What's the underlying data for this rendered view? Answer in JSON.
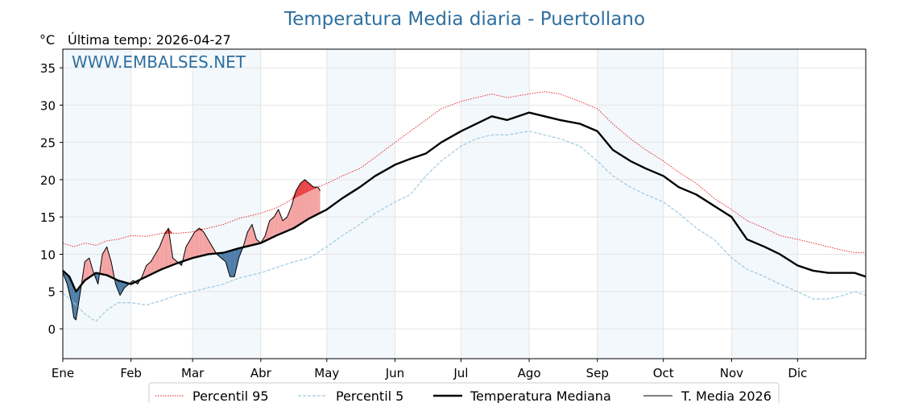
{
  "chart_data": {
    "type": "line",
    "title": "Temperatura Media diaria - Puertollano",
    "unit_label": "°C",
    "subtitle": "Última temp: 2026-04-27",
    "watermark": "WWW.EMBALSES.NET",
    "ylim": [
      -4,
      37.5
    ],
    "xlim": [
      0,
      365
    ],
    "grid": true,
    "legend_placement": "bottom-center",
    "y_ticks": [
      0,
      5,
      10,
      15,
      20,
      25,
      30,
      35
    ],
    "month_labels": [
      "Ene",
      "Feb",
      "Mar",
      "Abr",
      "May",
      "Jun",
      "Jul",
      "Ago",
      "Sep",
      "Oct",
      "Nov",
      "Dic"
    ],
    "month_starts": [
      0,
      31,
      59,
      90,
      120,
      151,
      181,
      212,
      243,
      273,
      304,
      334
    ],
    "colors": {
      "p95": "#e41a1c",
      "p5": "#9ecae1",
      "median": "#000000",
      "current": "#000000",
      "above": "#f4a3a3",
      "above_strong": "#e8474a",
      "below": "#4f7ea8",
      "band": "#f3f8fc",
      "title": "#2f6f9f"
    },
    "series": [
      {
        "name": "Percentil 95",
        "style": "dotted-red",
        "points": [
          [
            0,
            11.5
          ],
          [
            5,
            11
          ],
          [
            10,
            11.5
          ],
          [
            15,
            11.2
          ],
          [
            20,
            11.8
          ],
          [
            25,
            12
          ],
          [
            31,
            12.5
          ],
          [
            38,
            12.4
          ],
          [
            45,
            12.8
          ],
          [
            52,
            12.8
          ],
          [
            59,
            13
          ],
          [
            66,
            13.5
          ],
          [
            73,
            14
          ],
          [
            80,
            14.8
          ],
          [
            90,
            15.5
          ],
          [
            97,
            16.2
          ],
          [
            105,
            17.5
          ],
          [
            112,
            18.5
          ],
          [
            120,
            19.5
          ],
          [
            127,
            20.5
          ],
          [
            135,
            21.5
          ],
          [
            142,
            23
          ],
          [
            151,
            25
          ],
          [
            158,
            26.5
          ],
          [
            165,
            28
          ],
          [
            172,
            29.5
          ],
          [
            181,
            30.5
          ],
          [
            188,
            31
          ],
          [
            195,
            31.5
          ],
          [
            202,
            31
          ],
          [
            212,
            31.5
          ],
          [
            219,
            31.8
          ],
          [
            226,
            31.5
          ],
          [
            235,
            30.5
          ],
          [
            243,
            29.5
          ],
          [
            250,
            27.5
          ],
          [
            258,
            25.5
          ],
          [
            265,
            24
          ],
          [
            273,
            22.5
          ],
          [
            280,
            21
          ],
          [
            288,
            19.5
          ],
          [
            296,
            17.5
          ],
          [
            304,
            16
          ],
          [
            311,
            14.5
          ],
          [
            319,
            13.5
          ],
          [
            326,
            12.5
          ],
          [
            334,
            12
          ],
          [
            341,
            11.5
          ],
          [
            348,
            11
          ],
          [
            355,
            10.5
          ],
          [
            360,
            10.2
          ],
          [
            365,
            10.2
          ]
        ]
      },
      {
        "name": "Percentil 5",
        "style": "dashed-blue",
        "points": [
          [
            0,
            4.8
          ],
          [
            5,
            3.5
          ],
          [
            10,
            2
          ],
          [
            15,
            1
          ],
          [
            20,
            2.5
          ],
          [
            25,
            3.5
          ],
          [
            31,
            3.5
          ],
          [
            38,
            3.2
          ],
          [
            45,
            3.8
          ],
          [
            52,
            4.5
          ],
          [
            59,
            5
          ],
          [
            66,
            5.5
          ],
          [
            73,
            6
          ],
          [
            80,
            6.8
          ],
          [
            90,
            7.5
          ],
          [
            97,
            8.2
          ],
          [
            105,
            9
          ],
          [
            112,
            9.5
          ],
          [
            120,
            11
          ],
          [
            127,
            12.5
          ],
          [
            135,
            14
          ],
          [
            142,
            15.5
          ],
          [
            151,
            17
          ],
          [
            158,
            18
          ],
          [
            165,
            20.5
          ],
          [
            172,
            22.5
          ],
          [
            181,
            24.5
          ],
          [
            188,
            25.5
          ],
          [
            195,
            26
          ],
          [
            202,
            26
          ],
          [
            212,
            26.5
          ],
          [
            219,
            26
          ],
          [
            226,
            25.5
          ],
          [
            235,
            24.5
          ],
          [
            243,
            22.5
          ],
          [
            250,
            20.5
          ],
          [
            258,
            19
          ],
          [
            265,
            18
          ],
          [
            273,
            17
          ],
          [
            280,
            15.5
          ],
          [
            288,
            13.5
          ],
          [
            296,
            12
          ],
          [
            304,
            9.5
          ],
          [
            311,
            8
          ],
          [
            319,
            7
          ],
          [
            326,
            6
          ],
          [
            334,
            5
          ],
          [
            341,
            4
          ],
          [
            348,
            4
          ],
          [
            355,
            4.5
          ],
          [
            360,
            5
          ],
          [
            365,
            4.5
          ]
        ]
      },
      {
        "name": "Temperatura Mediana",
        "style": "thick-black",
        "points": [
          [
            0,
            7.8
          ],
          [
            3,
            7
          ],
          [
            6,
            5
          ],
          [
            10,
            6.5
          ],
          [
            15,
            7.5
          ],
          [
            20,
            7.2
          ],
          [
            25,
            6.5
          ],
          [
            31,
            6
          ],
          [
            38,
            7
          ],
          [
            45,
            8
          ],
          [
            52,
            8.8
          ],
          [
            59,
            9.5
          ],
          [
            66,
            10
          ],
          [
            73,
            10.2
          ],
          [
            80,
            10.8
          ],
          [
            90,
            11.5
          ],
          [
            97,
            12.5
          ],
          [
            105,
            13.5
          ],
          [
            112,
            14.8
          ],
          [
            120,
            16
          ],
          [
            127,
            17.5
          ],
          [
            135,
            19
          ],
          [
            142,
            20.5
          ],
          [
            151,
            22
          ],
          [
            158,
            22.8
          ],
          [
            165,
            23.5
          ],
          [
            172,
            25
          ],
          [
            181,
            26.5
          ],
          [
            188,
            27.5
          ],
          [
            195,
            28.5
          ],
          [
            202,
            28
          ],
          [
            212,
            29
          ],
          [
            219,
            28.5
          ],
          [
            226,
            28
          ],
          [
            235,
            27.5
          ],
          [
            243,
            26.5
          ],
          [
            250,
            24
          ],
          [
            258,
            22.5
          ],
          [
            265,
            21.5
          ],
          [
            273,
            20.5
          ],
          [
            280,
            19
          ],
          [
            288,
            18
          ],
          [
            296,
            16.5
          ],
          [
            304,
            15
          ],
          [
            311,
            12
          ],
          [
            319,
            11
          ],
          [
            326,
            10
          ],
          [
            334,
            8.5
          ],
          [
            341,
            7.8
          ],
          [
            348,
            7.5
          ],
          [
            355,
            7.5
          ],
          [
            360,
            7.5
          ],
          [
            365,
            7
          ]
        ]
      },
      {
        "name": "T. Media 2026",
        "style": "thin-black",
        "points": [
          [
            0,
            7.5
          ],
          [
            2,
            6
          ],
          [
            4,
            3.5
          ],
          [
            5,
            1.5
          ],
          [
            6,
            1.2
          ],
          [
            8,
            5
          ],
          [
            10,
            9
          ],
          [
            12,
            9.5
          ],
          [
            14,
            7.5
          ],
          [
            16,
            6
          ],
          [
            18,
            10
          ],
          [
            20,
            11
          ],
          [
            22,
            9
          ],
          [
            24,
            6
          ],
          [
            26,
            4.5
          ],
          [
            28,
            5.5
          ],
          [
            30,
            6
          ],
          [
            32,
            6.5
          ],
          [
            34,
            6
          ],
          [
            36,
            7
          ],
          [
            38,
            8.5
          ],
          [
            40,
            9
          ],
          [
            42,
            10
          ],
          [
            44,
            11
          ],
          [
            46,
            12.5
          ],
          [
            48,
            13.5
          ],
          [
            50,
            9.5
          ],
          [
            52,
            9
          ],
          [
            54,
            8.5
          ],
          [
            56,
            11
          ],
          [
            58,
            12
          ],
          [
            60,
            13
          ],
          [
            62,
            13.5
          ],
          [
            64,
            13
          ],
          [
            66,
            12
          ],
          [
            68,
            11
          ],
          [
            70,
            10
          ],
          [
            72,
            9.5
          ],
          [
            74,
            9
          ],
          [
            76,
            7
          ],
          [
            78,
            7
          ],
          [
            80,
            9.5
          ],
          [
            82,
            11
          ],
          [
            84,
            13
          ],
          [
            86,
            14
          ],
          [
            88,
            12
          ],
          [
            90,
            11.5
          ],
          [
            92,
            12.5
          ],
          [
            94,
            14.5
          ],
          [
            96,
            15
          ],
          [
            98,
            16
          ],
          [
            100,
            14.5
          ],
          [
            102,
            15
          ],
          [
            104,
            16.5
          ],
          [
            106,
            18.5
          ],
          [
            108,
            19.5
          ],
          [
            110,
            20
          ],
          [
            112,
            19.5
          ],
          [
            114,
            19
          ],
          [
            116,
            19
          ],
          [
            117,
            18.5
          ]
        ]
      }
    ]
  }
}
